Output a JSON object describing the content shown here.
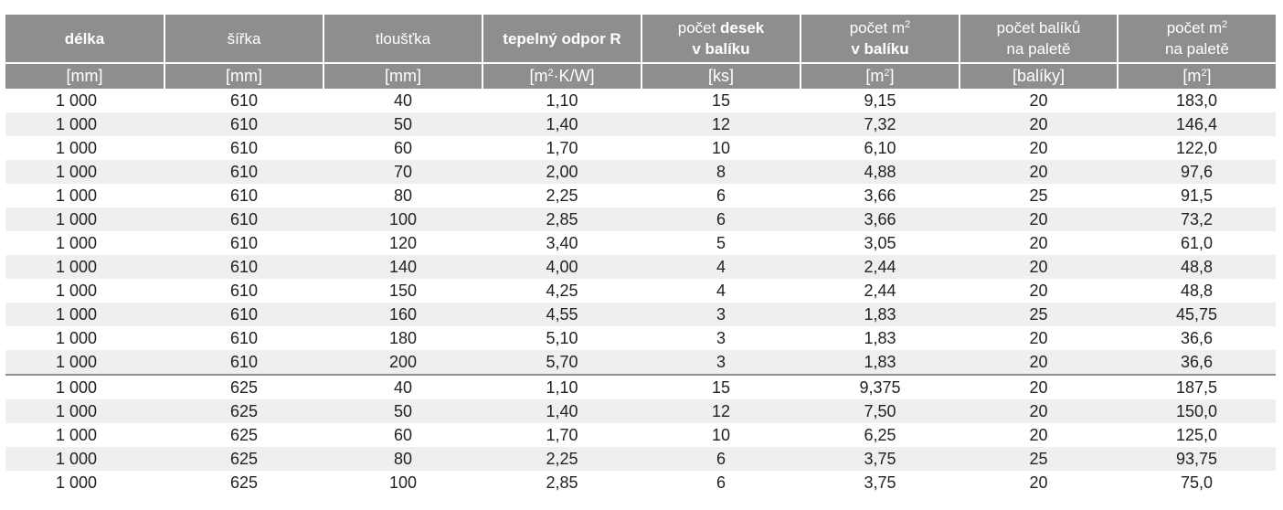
{
  "header": {
    "row1": [
      {
        "parts": [
          {
            "text": "délka",
            "bold": true
          }
        ]
      },
      {
        "parts": [
          {
            "text": "šířka",
            "bold": false
          }
        ]
      },
      {
        "parts": [
          {
            "text": "tloušťka",
            "bold": false
          }
        ]
      },
      {
        "parts": [
          {
            "text": "tepelný odpor R",
            "bold": true
          }
        ]
      },
      {
        "lines": [
          [
            {
              "text": "počet ",
              "bold": false
            },
            {
              "text": "desek",
              "bold": true
            }
          ],
          [
            {
              "text": "v balíku",
              "bold": true
            }
          ]
        ]
      },
      {
        "lines": [
          [
            {
              "text": "počet m²",
              "bold": false
            }
          ],
          [
            {
              "text": "v balíku",
              "bold": true
            }
          ]
        ]
      },
      {
        "lines": [
          [
            {
              "text": "počet balíků",
              "bold": false
            }
          ],
          [
            {
              "text": "na paletě",
              "bold": false
            }
          ]
        ]
      },
      {
        "lines": [
          [
            {
              "text": "počet m²",
              "bold": false
            }
          ],
          [
            {
              "text": "na paletě",
              "bold": false
            }
          ]
        ]
      }
    ],
    "units": [
      "[mm]",
      "[mm]",
      "[mm]",
      "[m²·K/W]",
      "[ks]",
      "[m²]",
      "[balíky]",
      "[m²]"
    ]
  },
  "rows": [
    [
      "1 000",
      "610",
      "40",
      "1,10",
      "15",
      "9,15",
      "20",
      "183,0"
    ],
    [
      "1 000",
      "610",
      "50",
      "1,40",
      "12",
      "7,32",
      "20",
      "146,4"
    ],
    [
      "1 000",
      "610",
      "60",
      "1,70",
      "10",
      "6,10",
      "20",
      "122,0"
    ],
    [
      "1 000",
      "610",
      "70",
      "2,00",
      "8",
      "4,88",
      "20",
      "97,6"
    ],
    [
      "1 000",
      "610",
      "80",
      "2,25",
      "6",
      "3,66",
      "25",
      "91,5"
    ],
    [
      "1 000",
      "610",
      "100",
      "2,85",
      "6",
      "3,66",
      "20",
      "73,2"
    ],
    [
      "1 000",
      "610",
      "120",
      "3,40",
      "5",
      "3,05",
      "20",
      "61,0"
    ],
    [
      "1 000",
      "610",
      "140",
      "4,00",
      "4",
      "2,44",
      "20",
      "48,8"
    ],
    [
      "1 000",
      "610",
      "150",
      "4,25",
      "4",
      "2,44",
      "20",
      "48,8"
    ],
    [
      "1 000",
      "610",
      "160",
      "4,55",
      "3",
      "1,83",
      "25",
      "45,75"
    ],
    [
      "1 000",
      "610",
      "180",
      "5,10",
      "3",
      "1,83",
      "20",
      "36,6"
    ],
    [
      "1 000",
      "610",
      "200",
      "5,70",
      "3",
      "1,83",
      "20",
      "36,6"
    ],
    [
      "1 000",
      "625",
      "40",
      "1,10",
      "15",
      "9,375",
      "20",
      "187,5"
    ],
    [
      "1 000",
      "625",
      "50",
      "1,40",
      "12",
      "7,50",
      "20",
      "150,0"
    ],
    [
      "1 000",
      "625",
      "60",
      "1,70",
      "10",
      "6,25",
      "20",
      "125,0"
    ],
    [
      "1 000",
      "625",
      "80",
      "2,25",
      "6",
      "3,75",
      "25",
      "93,75"
    ],
    [
      "1 000",
      "625",
      "100",
      "2,85",
      "6",
      "3,75",
      "20",
      "75,0"
    ]
  ],
  "group_separator_after_row": 12,
  "colors": {
    "header_bg": "#8e8e8e",
    "header_text": "#ffffff",
    "stripe": "#efefef",
    "text": "#222222"
  }
}
